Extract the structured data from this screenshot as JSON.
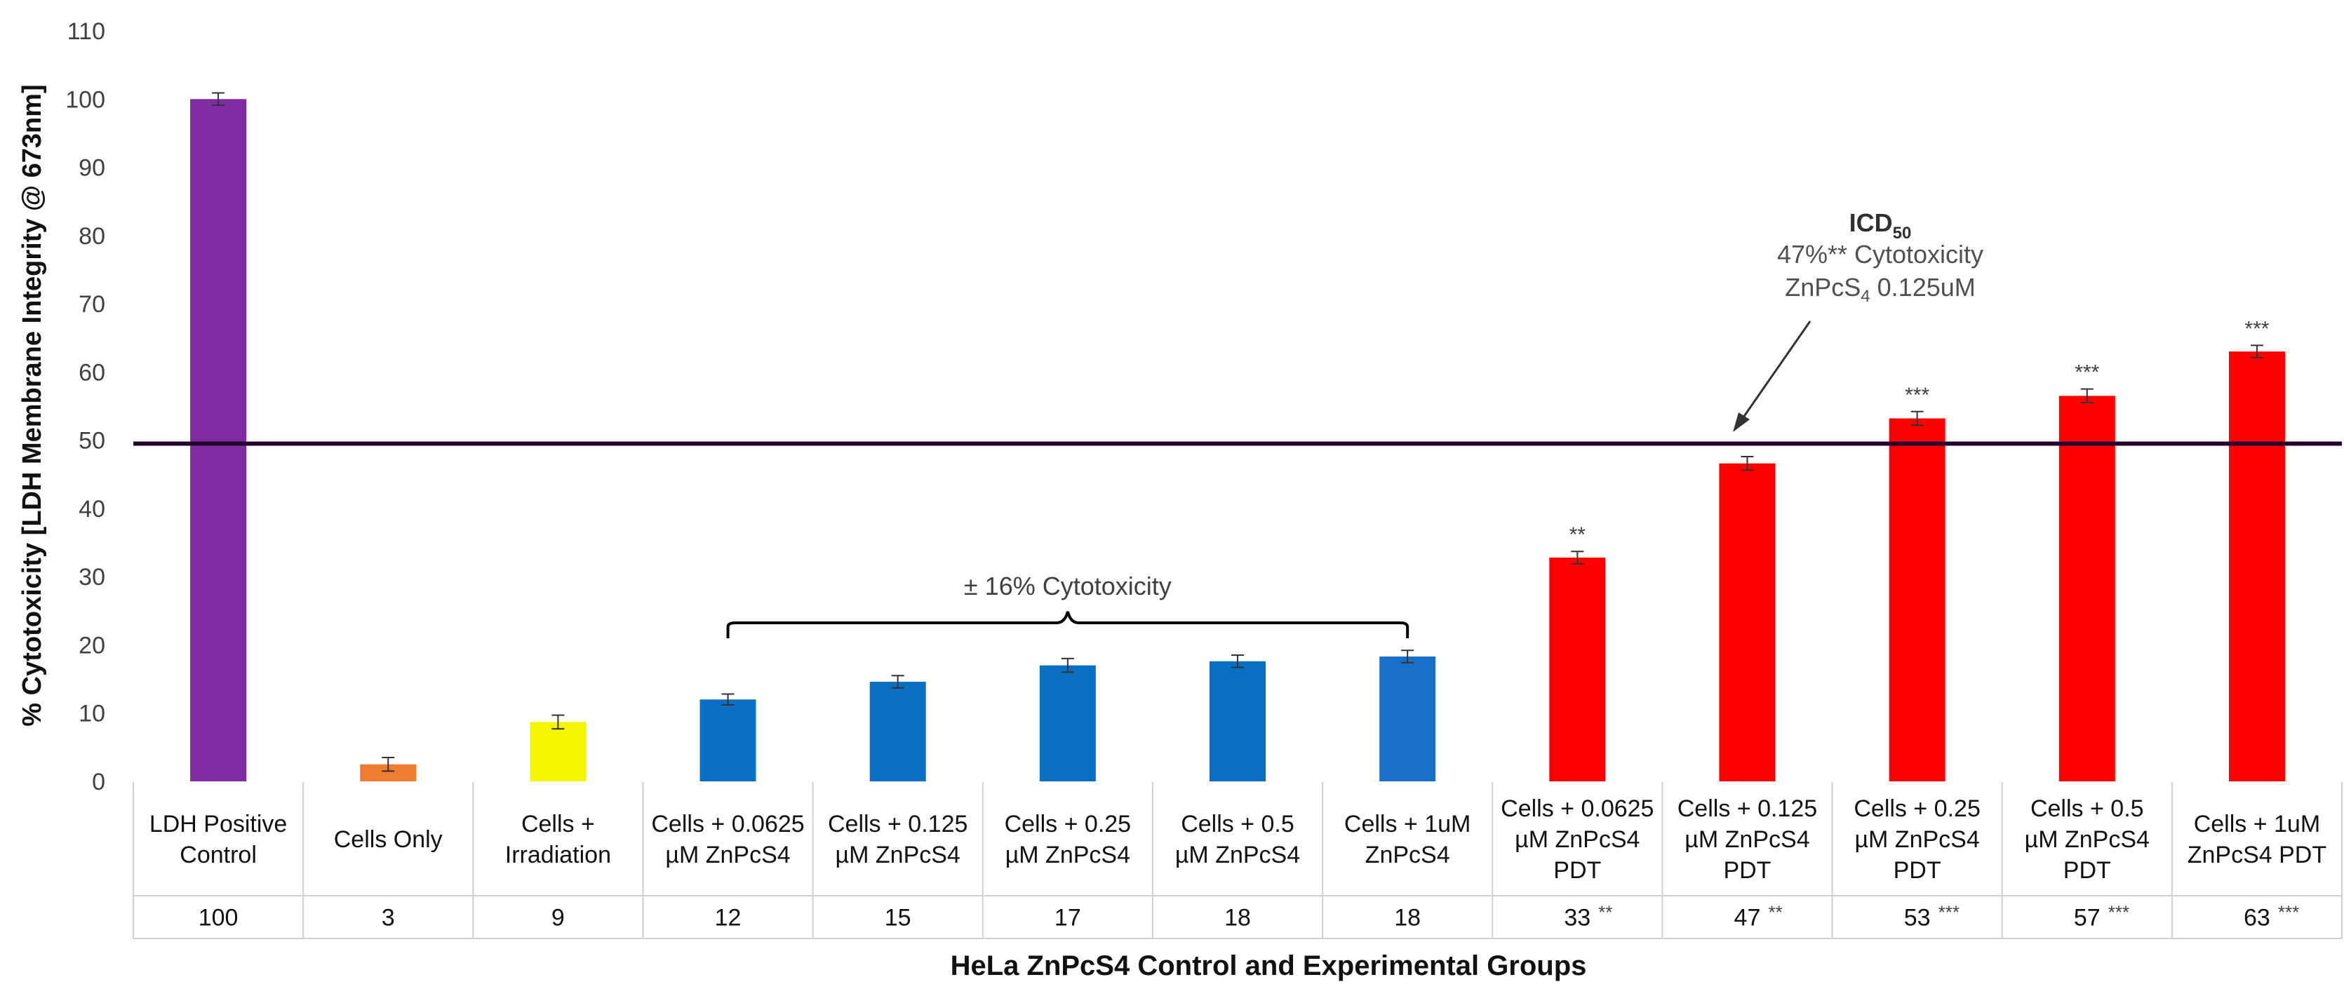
{
  "chart_data": {
    "type": "bar",
    "title": "",
    "xlabel": "HeLa ZnPcS4 Control and Experimental Groups",
    "ylabel": "% Cytotoxicity [LDH Membrane Integrity @ 673nm]",
    "ylim": [
      0,
      110
    ],
    "yticks": [
      0,
      10,
      20,
      30,
      40,
      50,
      60,
      70,
      80,
      90,
      100,
      110
    ],
    "reference_line": 49.5,
    "categories": [
      [
        "LDH Positive",
        "Control"
      ],
      [
        "Cells Only"
      ],
      [
        "Cells +",
        "Irradiation"
      ],
      [
        "Cells + 0.0625",
        "µM ZnPcS4"
      ],
      [
        "Cells + 0.125",
        "µM ZnPcS4"
      ],
      [
        "Cells + 0.25",
        "µM ZnPcS4"
      ],
      [
        "Cells + 0.5",
        "µM ZnPcS4"
      ],
      [
        "Cells + 1uM",
        "ZnPcS4"
      ],
      [
        "Cells + 0.0625",
        "µM ZnPcS4",
        "PDT"
      ],
      [
        "Cells + 0.125",
        "µM ZnPcS4",
        "PDT"
      ],
      [
        "Cells + 0.25",
        "µM ZnPcS4",
        "PDT"
      ],
      [
        "Cells + 0.5",
        "µM ZnPcS4",
        "PDT"
      ],
      [
        "Cells + 1uM",
        "ZnPcS4 PDT"
      ]
    ],
    "values": [
      100,
      2.5,
      8.7,
      12,
      14.6,
      17,
      17.6,
      18.3,
      32.8,
      46.6,
      53.2,
      56.5,
      63
    ],
    "errors": [
      0.9,
      1.0,
      1.0,
      0.8,
      0.9,
      1.0,
      0.9,
      0.9,
      0.9,
      1.0,
      1.0,
      1.0,
      0.9
    ],
    "colors": [
      "#7f2ca0",
      "#f07c30",
      "#f5f500",
      "#0a6fc2",
      "#0a6fc2",
      "#0a6fc2",
      "#0a6fc2",
      "#1a70c8",
      "#ff0000",
      "#ff0000",
      "#ff0000",
      "#ff0000",
      "#ff0000"
    ],
    "significance": [
      "",
      "",
      "",
      "",
      "",
      "",
      "",
      "",
      "**",
      "",
      "***",
      "***",
      "***"
    ],
    "table_values": [
      "100",
      "3",
      "9",
      "12",
      "15",
      "17",
      "18",
      "18",
      "33",
      "47",
      "53",
      "57",
      "63"
    ],
    "table_significance": [
      "",
      "",
      "",
      "",
      "",
      "",
      "",
      "",
      "**",
      "**",
      "***",
      "***",
      "***"
    ],
    "brace_label": "± 16% Cytotoxicity",
    "icd_annotation": {
      "heading": "ICD",
      "heading_sub": "50",
      "line1": "47%** Cytotoxicity",
      "line2_pre": "ZnPcS",
      "line2_sub": "4",
      "line2_post": " 0.125uM"
    }
  }
}
